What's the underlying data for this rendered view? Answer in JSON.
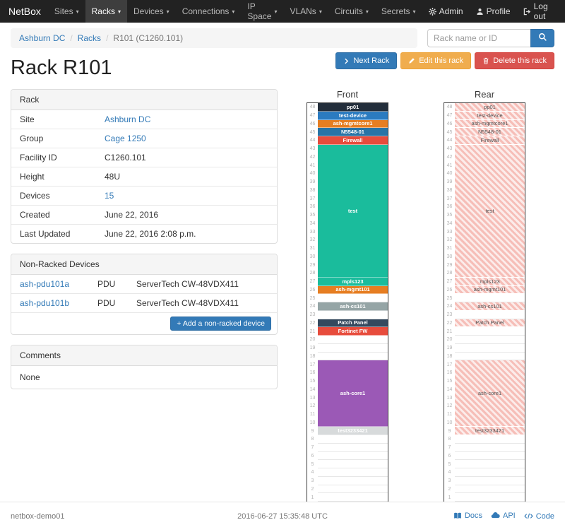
{
  "navbar": {
    "brand": "NetBox",
    "items": [
      {
        "label": "Sites",
        "active": false
      },
      {
        "label": "Racks",
        "active": true
      },
      {
        "label": "Devices",
        "active": false
      },
      {
        "label": "Connections",
        "active": false
      },
      {
        "label": "IP Space",
        "active": false
      },
      {
        "label": "VLANs",
        "active": false
      },
      {
        "label": "Circuits",
        "active": false
      },
      {
        "label": "Secrets",
        "active": false
      }
    ],
    "right": [
      {
        "label": "Admin",
        "icon": "gear-icon"
      },
      {
        "label": "Profile",
        "icon": "user-icon"
      },
      {
        "label": "Log out",
        "icon": "logout-icon"
      }
    ]
  },
  "breadcrumb": {
    "items": [
      {
        "label": "Ashburn DC",
        "link": true
      },
      {
        "label": "Racks",
        "link": true
      },
      {
        "label": "R101 (C1260.101)",
        "link": false
      }
    ]
  },
  "search": {
    "placeholder": "Rack name or ID"
  },
  "actions": {
    "next": "Next Rack",
    "edit": "Edit this rack",
    "delete": "Delete this rack"
  },
  "page_title": "Rack R101",
  "rack_panel": {
    "title": "Rack",
    "rows": [
      {
        "label": "Site",
        "value": "Ashburn DC",
        "link": true
      },
      {
        "label": "Group",
        "value": "Cage 1250",
        "link": true
      },
      {
        "label": "Facility ID",
        "value": "C1260.101",
        "link": false
      },
      {
        "label": "Height",
        "value": "48U",
        "link": false
      },
      {
        "label": "Devices",
        "value": "15",
        "link": true
      },
      {
        "label": "Created",
        "value": "June 22, 2016",
        "link": false
      },
      {
        "label": "Last Updated",
        "value": "June 22, 2016 2:08 p.m.",
        "link": false
      }
    ]
  },
  "non_racked": {
    "title": "Non-Racked Devices",
    "rows": [
      {
        "name": "ash-pdu101a",
        "role": "PDU",
        "model": "ServerTech CW-48VDX411"
      },
      {
        "name": "ash-pdu101b",
        "role": "PDU",
        "model": "ServerTech CW-48VDX411"
      }
    ],
    "add_button": "Add a non-racked device"
  },
  "comments": {
    "title": "Comments",
    "body": "None"
  },
  "elevations": {
    "units": 48,
    "front": {
      "title": "Front",
      "devices": [
        {
          "u": 48,
          "span": 1,
          "label": "pp01",
          "color": "#232e3b",
          "text": "#ffffff"
        },
        {
          "u": 47,
          "span": 1,
          "label": "test-device",
          "color": "#2b7bc0",
          "text": "#ffffff"
        },
        {
          "u": 46,
          "span": 1,
          "label": "ash-mgmtcore1",
          "color": "#e67e22",
          "text": "#ffffff"
        },
        {
          "u": 45,
          "span": 1,
          "label": "N5548-01",
          "color": "#2874a6",
          "text": "#ffffff"
        },
        {
          "u": 44,
          "span": 1,
          "label": "Firewall",
          "color": "#e74c3c",
          "text": "#ffffff"
        },
        {
          "u": 43,
          "span": 16,
          "label": "test",
          "color": "#1abc9c",
          "text": "#ffffff"
        },
        {
          "u": 27,
          "span": 1,
          "label": "mpls123",
          "color": "#1abc9c",
          "text": "#ffffff"
        },
        {
          "u": 26,
          "span": 1,
          "label": "ash-mgmt101",
          "color": "#e67e22",
          "text": "#ffffff"
        },
        {
          "u": 24,
          "span": 1,
          "label": "ash-cs101",
          "color": "#95a5a6",
          "text": "#ffffff"
        },
        {
          "u": 22,
          "span": 1,
          "label": "Patch Panel",
          "color": "#34495e",
          "text": "#ffffff"
        },
        {
          "u": 21,
          "span": 1,
          "label": "Fortinet FW",
          "color": "#e74c3c",
          "text": "#ffffff"
        },
        {
          "u": 17,
          "span": 8,
          "label": "ash-core1",
          "color": "#9b59b6",
          "text": "#ffffff"
        },
        {
          "u": 9,
          "span": 1,
          "label": "test3233421",
          "color": "#d7dadb",
          "text": "#ffffff"
        }
      ]
    },
    "rear": {
      "title": "Rear",
      "devices": [
        {
          "u": 48,
          "span": 1,
          "label": "pp01"
        },
        {
          "u": 47,
          "span": 1,
          "label": "test-device"
        },
        {
          "u": 46,
          "span": 1,
          "label": "ash-mgmtcore1"
        },
        {
          "u": 45,
          "span": 1,
          "label": "N5548-01"
        },
        {
          "u": 44,
          "span": 1,
          "label": "Firewall"
        },
        {
          "u": 43,
          "span": 16,
          "label": "test"
        },
        {
          "u": 27,
          "span": 1,
          "label": "mpls123"
        },
        {
          "u": 26,
          "span": 1,
          "label": "ash-mgmt101"
        },
        {
          "u": 24,
          "span": 1,
          "label": "ash-cs101"
        },
        {
          "u": 22,
          "span": 1,
          "label": "Patch Panel"
        },
        {
          "u": 17,
          "span": 8,
          "label": "ash-core1"
        },
        {
          "u": 9,
          "span": 1,
          "label": "test3233421"
        }
      ]
    }
  },
  "footer": {
    "hostname": "netbox-demo01",
    "timestamp": "2016-06-27 15:35:48 UTC",
    "links": [
      {
        "label": "Docs",
        "icon": "book-icon"
      },
      {
        "label": "API",
        "icon": "cloud-icon"
      },
      {
        "label": "Code",
        "icon": "code-icon"
      }
    ]
  }
}
